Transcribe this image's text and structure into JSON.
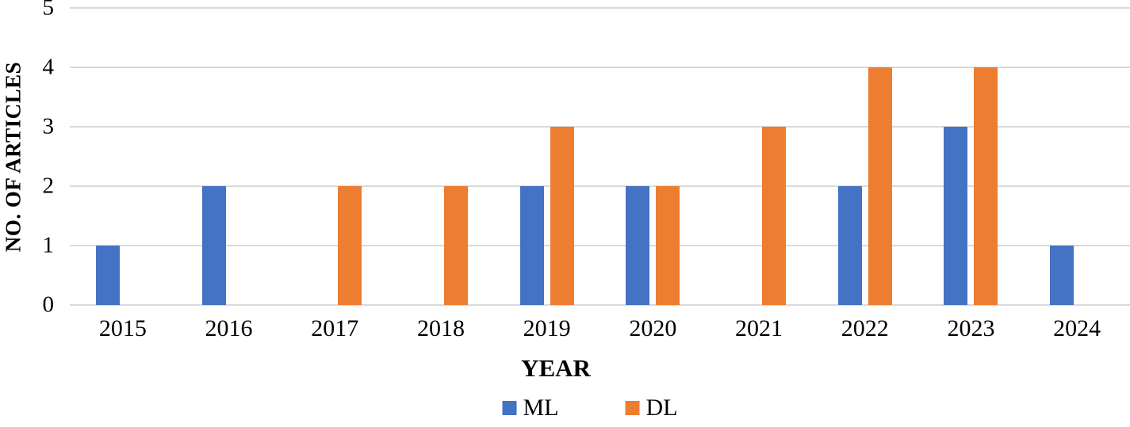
{
  "chart_data": {
    "type": "bar",
    "title": "",
    "categories": [
      "2015",
      "2016",
      "2017",
      "2018",
      "2019",
      "2020",
      "2021",
      "2022",
      "2023",
      "2024"
    ],
    "series": [
      {
        "name": "ML",
        "color": "#4472C4",
        "values": [
          1,
          2,
          0,
          0,
          2,
          2,
          0,
          2,
          3,
          1
        ]
      },
      {
        "name": "DL",
        "color": "#ED7D31",
        "values": [
          0,
          0,
          2,
          2,
          3,
          2,
          3,
          4,
          4,
          0
        ]
      }
    ],
    "xlabel": "YEAR",
    "ylabel": "NO. OF ARTICLES",
    "ylim": [
      0,
      5
    ],
    "yticks": [
      0,
      1,
      2,
      3,
      4,
      5
    ],
    "grid": true,
    "grid_color": "#D9D9D9",
    "text_color": "#000000",
    "legend_position": "bottom"
  }
}
